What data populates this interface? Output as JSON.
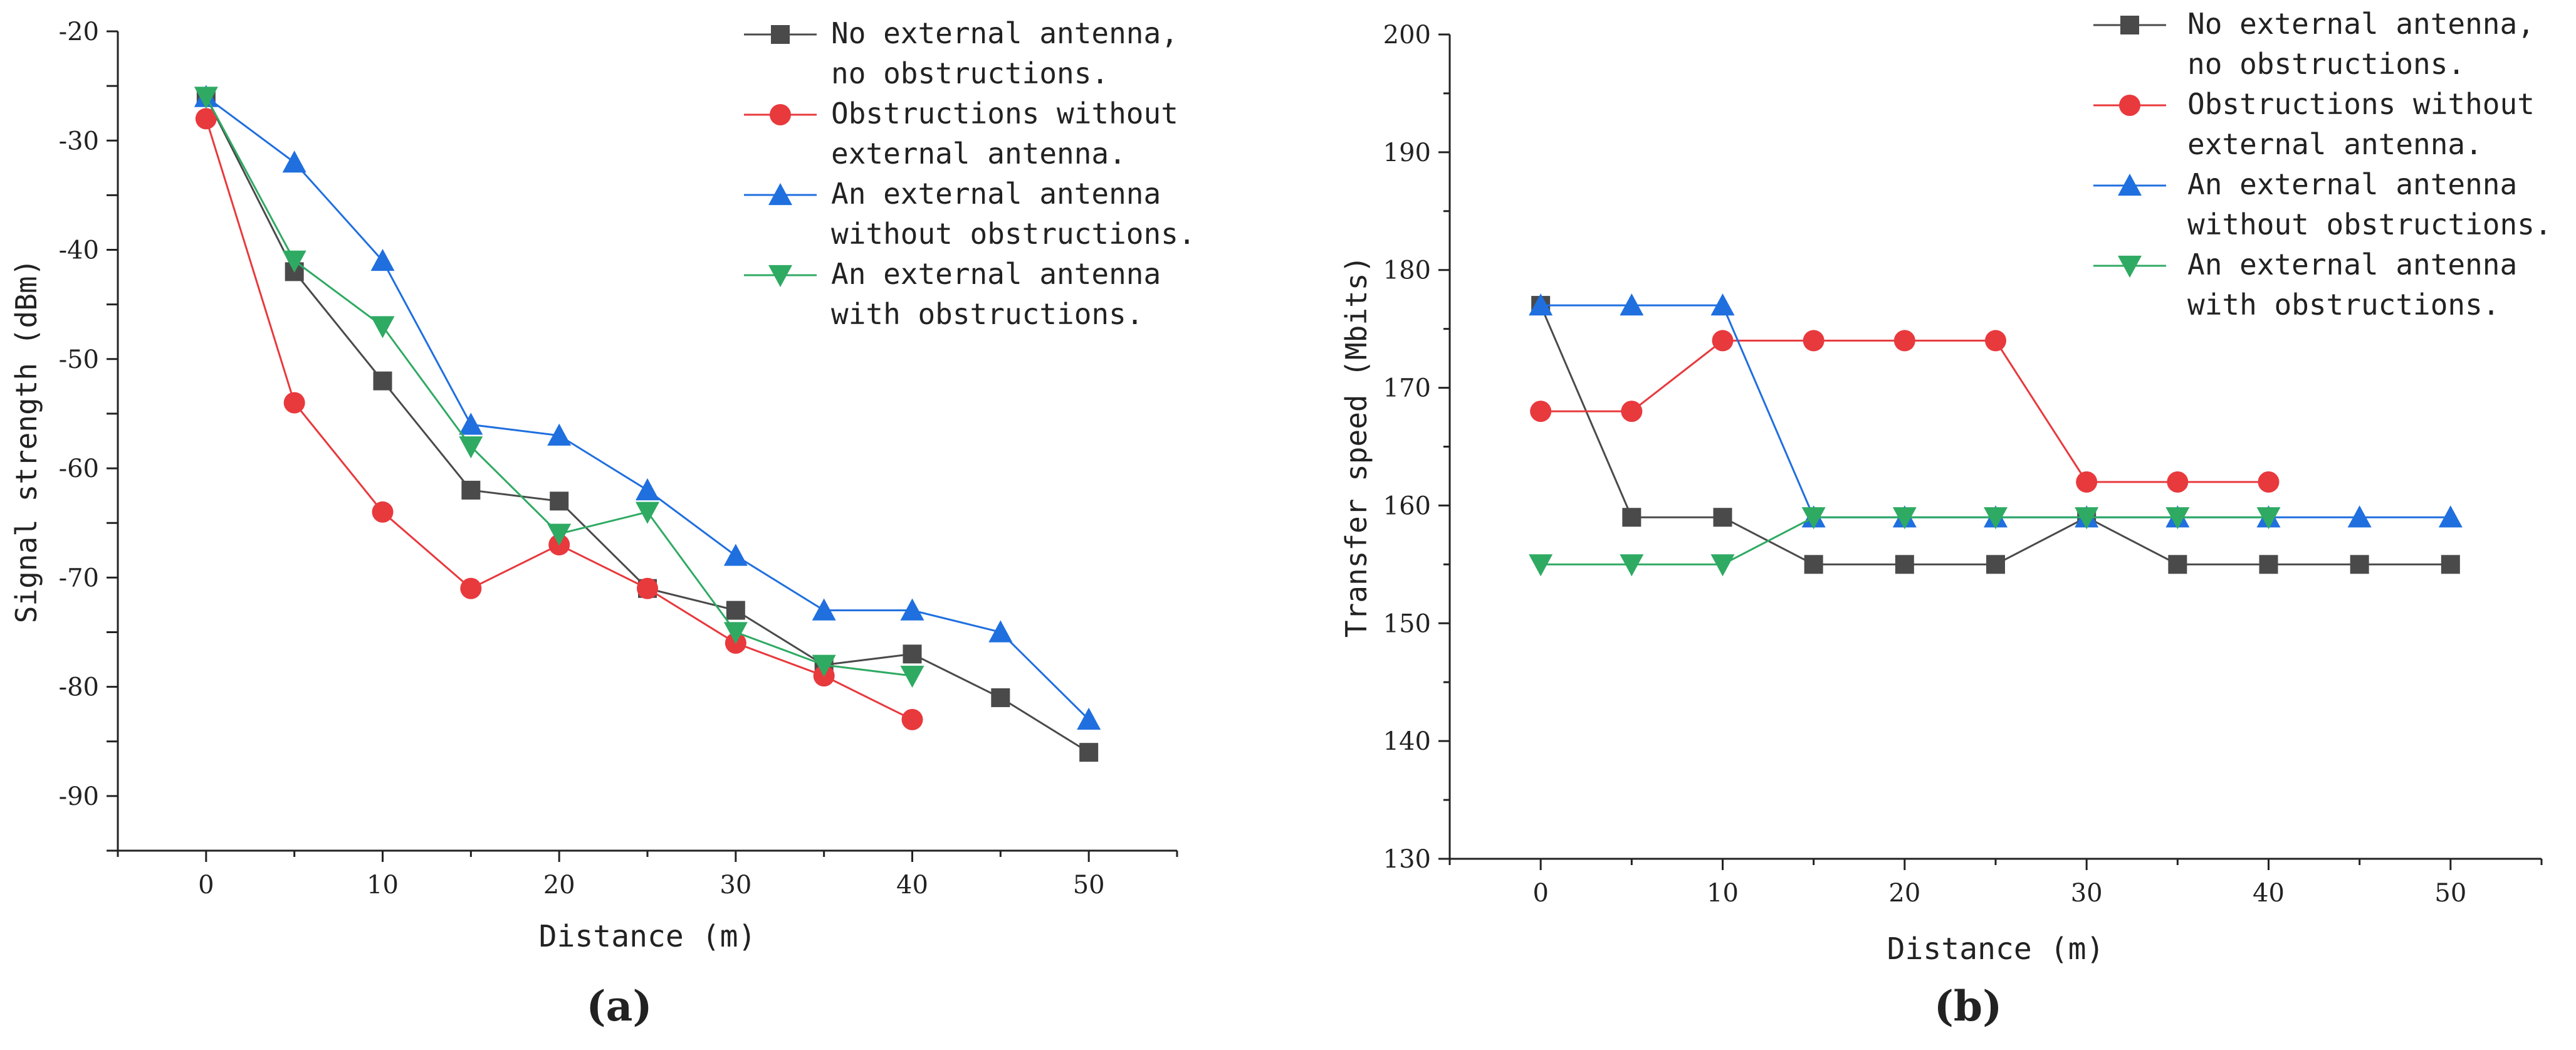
{
  "chart_data": [
    {
      "type": "line",
      "panel_label": "(a)",
      "x": [
        0,
        5,
        10,
        15,
        20,
        25,
        30,
        35,
        40,
        45,
        50
      ],
      "xlabel": "Distance (m)",
      "ylabel": "Signal strength (dBm)",
      "xlim": [
        -5,
        55
      ],
      "ylim": [
        -95,
        -20
      ],
      "xticks": [
        "0",
        "10",
        "20",
        "30",
        "40",
        "50"
      ],
      "yticks": [
        "-20",
        "-30",
        "-40",
        "-50",
        "-60",
        "-70",
        "-80",
        "-90"
      ],
      "legend_position": "top-right",
      "series": [
        {
          "name": "No external antenna, no obstructions.",
          "legend_lines": [
            "No external antenna,",
            "no obstructions."
          ],
          "color": "#4a4a4a",
          "marker": "square",
          "values": [
            -26,
            -42,
            -52,
            -62,
            -63,
            -71,
            -73,
            -78,
            -77,
            -81,
            -86
          ]
        },
        {
          "name": "Obstructions without external antenna.",
          "legend_lines": [
            "Obstructions without",
            "external antenna."
          ],
          "color": "#e8393d",
          "marker": "circle",
          "values": [
            -28,
            -54,
            -64,
            -71,
            -67,
            -71,
            -76,
            -79,
            -83,
            null,
            null
          ]
        },
        {
          "name": "An external antenna without obstructions.",
          "legend_lines": [
            "An external antenna",
            "without obstructions."
          ],
          "color": "#1f6fdf",
          "marker": "triangle-up",
          "values": [
            -26,
            -32,
            -41,
            -56,
            -57,
            -62,
            -68,
            -73,
            -73,
            -75,
            -83
          ]
        },
        {
          "name": "An external antenna with obstructions.",
          "legend_lines": [
            "An external antenna",
            "with obstructions."
          ],
          "color": "#2faa63",
          "marker": "triangle-down",
          "values": [
            -26,
            -41,
            -47,
            -58,
            -66,
            -64,
            -75,
            -78,
            -79,
            null,
            null
          ]
        }
      ]
    },
    {
      "type": "line",
      "panel_label": "(b)",
      "x": [
        0,
        5,
        10,
        15,
        20,
        25,
        30,
        35,
        40,
        45,
        50
      ],
      "xlabel": "Distance (m)",
      "ylabel": "Transfer speed (Mbits)",
      "xlim": [
        -5,
        55
      ],
      "ylim": [
        130,
        200
      ],
      "xticks": [
        "0",
        "10",
        "20",
        "30",
        "40",
        "50"
      ],
      "yticks": [
        "130",
        "140",
        "150",
        "160",
        "170",
        "180",
        "190",
        "200"
      ],
      "legend_position": "top-right",
      "series": [
        {
          "name": "No external antenna, no obstructions.",
          "legend_lines": [
            "No external antenna,",
            "no obstructions."
          ],
          "color": "#4a4a4a",
          "marker": "square",
          "values": [
            177,
            159,
            159,
            155,
            155,
            155,
            159,
            155,
            155,
            155,
            155
          ]
        },
        {
          "name": "Obstructions without external antenna.",
          "legend_lines": [
            "Obstructions without",
            "external antenna."
          ],
          "color": "#e8393d",
          "marker": "circle",
          "values": [
            168,
            168,
            174,
            174,
            174,
            174,
            162,
            162,
            162,
            null,
            null
          ]
        },
        {
          "name": "An external antenna without obstructions.",
          "legend_lines": [
            "An external antenna",
            "without obstructions."
          ],
          "color": "#1f6fdf",
          "marker": "triangle-up",
          "values": [
            177,
            177,
            177,
            159,
            159,
            159,
            159,
            159,
            159,
            159,
            159
          ]
        },
        {
          "name": "An external antenna with obstructions.",
          "legend_lines": [
            "An external antenna",
            "with obstructions."
          ],
          "color": "#2faa63",
          "marker": "triangle-down",
          "values": [
            155,
            155,
            155,
            159,
            159,
            159,
            159,
            159,
            159,
            null,
            null
          ]
        }
      ]
    }
  ]
}
